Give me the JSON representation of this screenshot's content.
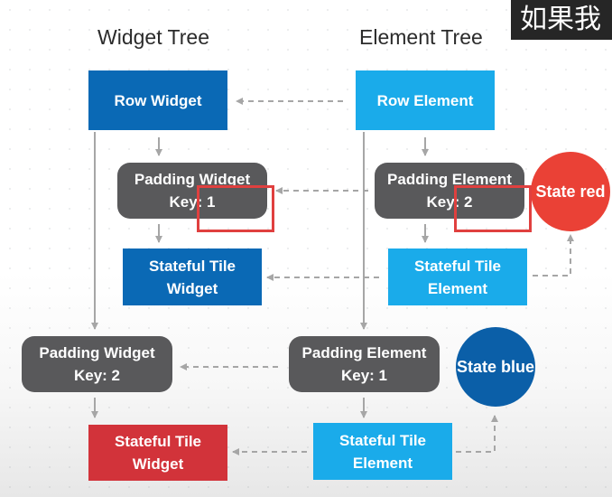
{
  "headings": {
    "widget_tree": "Widget Tree",
    "element_tree": "Element Tree"
  },
  "caption": "如果我",
  "widgets": {
    "row": "Row Widget",
    "padding_1": "Padding Widget Key: 1",
    "stateful_1": "Stateful Tile Widget",
    "padding_2": "Padding Widget Key: 2",
    "stateful_2": "Stateful Tile Widget"
  },
  "elements": {
    "row": "Row Element",
    "padding_1": "Padding Element Key: 2",
    "stateful_1": "Stateful Tile Element",
    "padding_2": "Padding Element Key: 1",
    "stateful_2": "Stateful Tile Element"
  },
  "states": {
    "top": "State red",
    "bottom": "State blue"
  },
  "colors": {
    "widget_blue": "#0a69b5",
    "element_cyan": "#1aabea",
    "padding_grey": "#59595b",
    "mismatch_red": "#d2333a",
    "state_red": "#ea4136",
    "state_blue": "#0b5fa8",
    "highlight_border": "#e0403f"
  }
}
